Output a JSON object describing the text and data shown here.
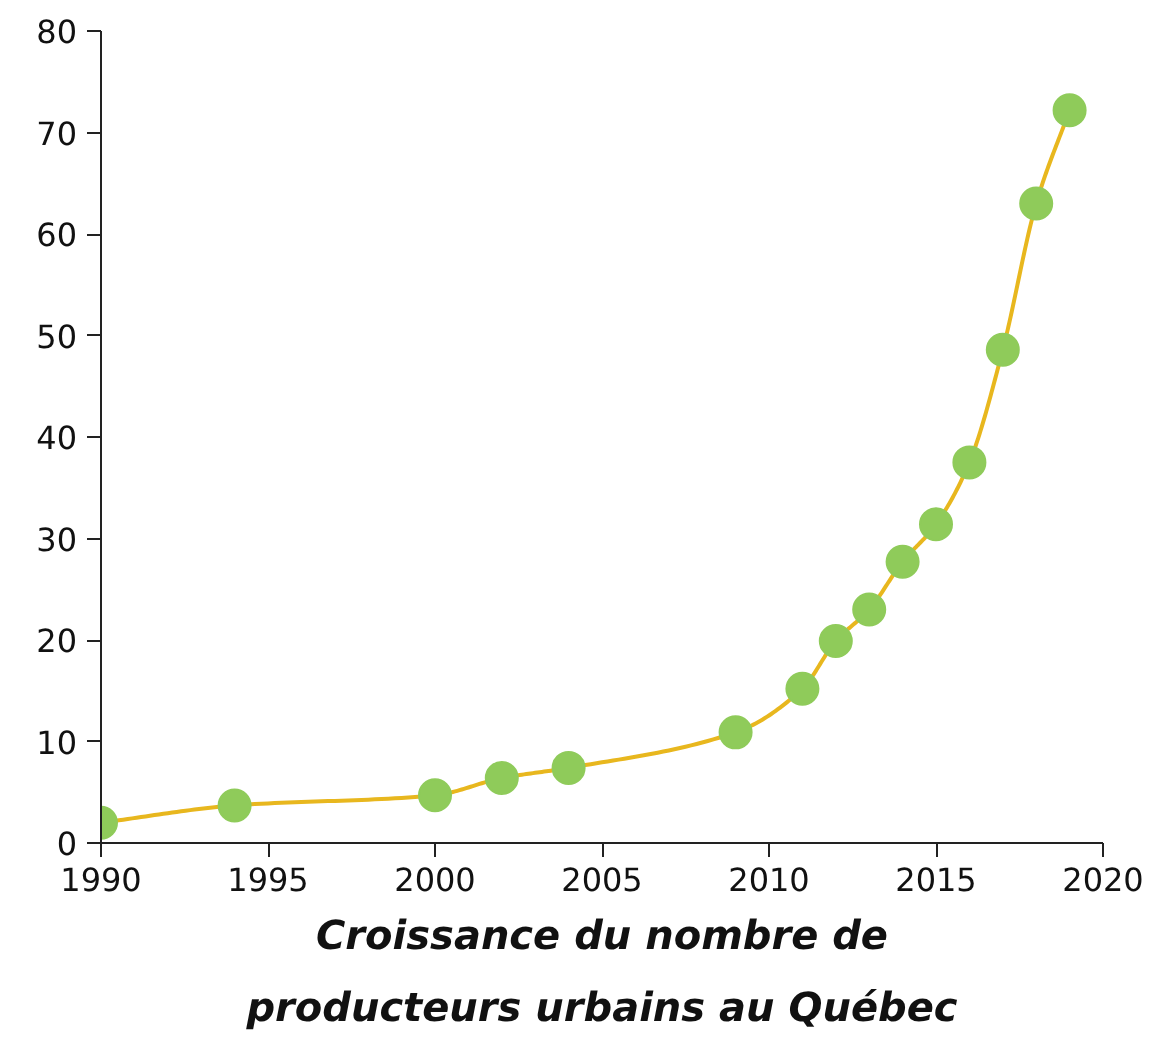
{
  "chart_data": {
    "type": "scatter",
    "title": "Croissance du nombre de\nproducteurs urbains au Québec",
    "series": [
      {
        "type": "line",
        "marker": "none",
        "color": "#e8b71e",
        "x": [
          1990,
          1994,
          2000,
          2002,
          2004,
          2009,
          2011,
          2012,
          2013,
          2014,
          2015,
          2016,
          2017,
          2018,
          2019
        ],
        "values": [
          2,
          3.7,
          4.7,
          6.4,
          7.4,
          10.9,
          15.2,
          19.9,
          23,
          27.7,
          31.4,
          37.5,
          48.6,
          63,
          72.2
        ]
      },
      {
        "color": "#8fcb5a",
        "x": [
          1990,
          1994,
          2000,
          2002,
          2004,
          2009,
          2011,
          2012,
          2013,
          2014,
          2015,
          2016,
          2017,
          2018,
          2019
        ],
        "values": [
          2,
          3.7,
          4.7,
          6.4,
          7.4,
          10.9,
          15.2,
          19.9,
          23,
          27.7,
          31.4,
          37.5,
          48.6,
          63,
          72.2
        ]
      }
    ],
    "xlim": [
      1990,
      2020
    ],
    "xticks": [
      1990,
      1995,
      2000,
      2005,
      2010,
      2015,
      2020
    ],
    "ylim": [
      0,
      80
    ],
    "yticks": [
      0,
      10,
      20,
      30,
      40,
      50,
      60,
      70,
      80
    ],
    "marker": "circle"
  }
}
